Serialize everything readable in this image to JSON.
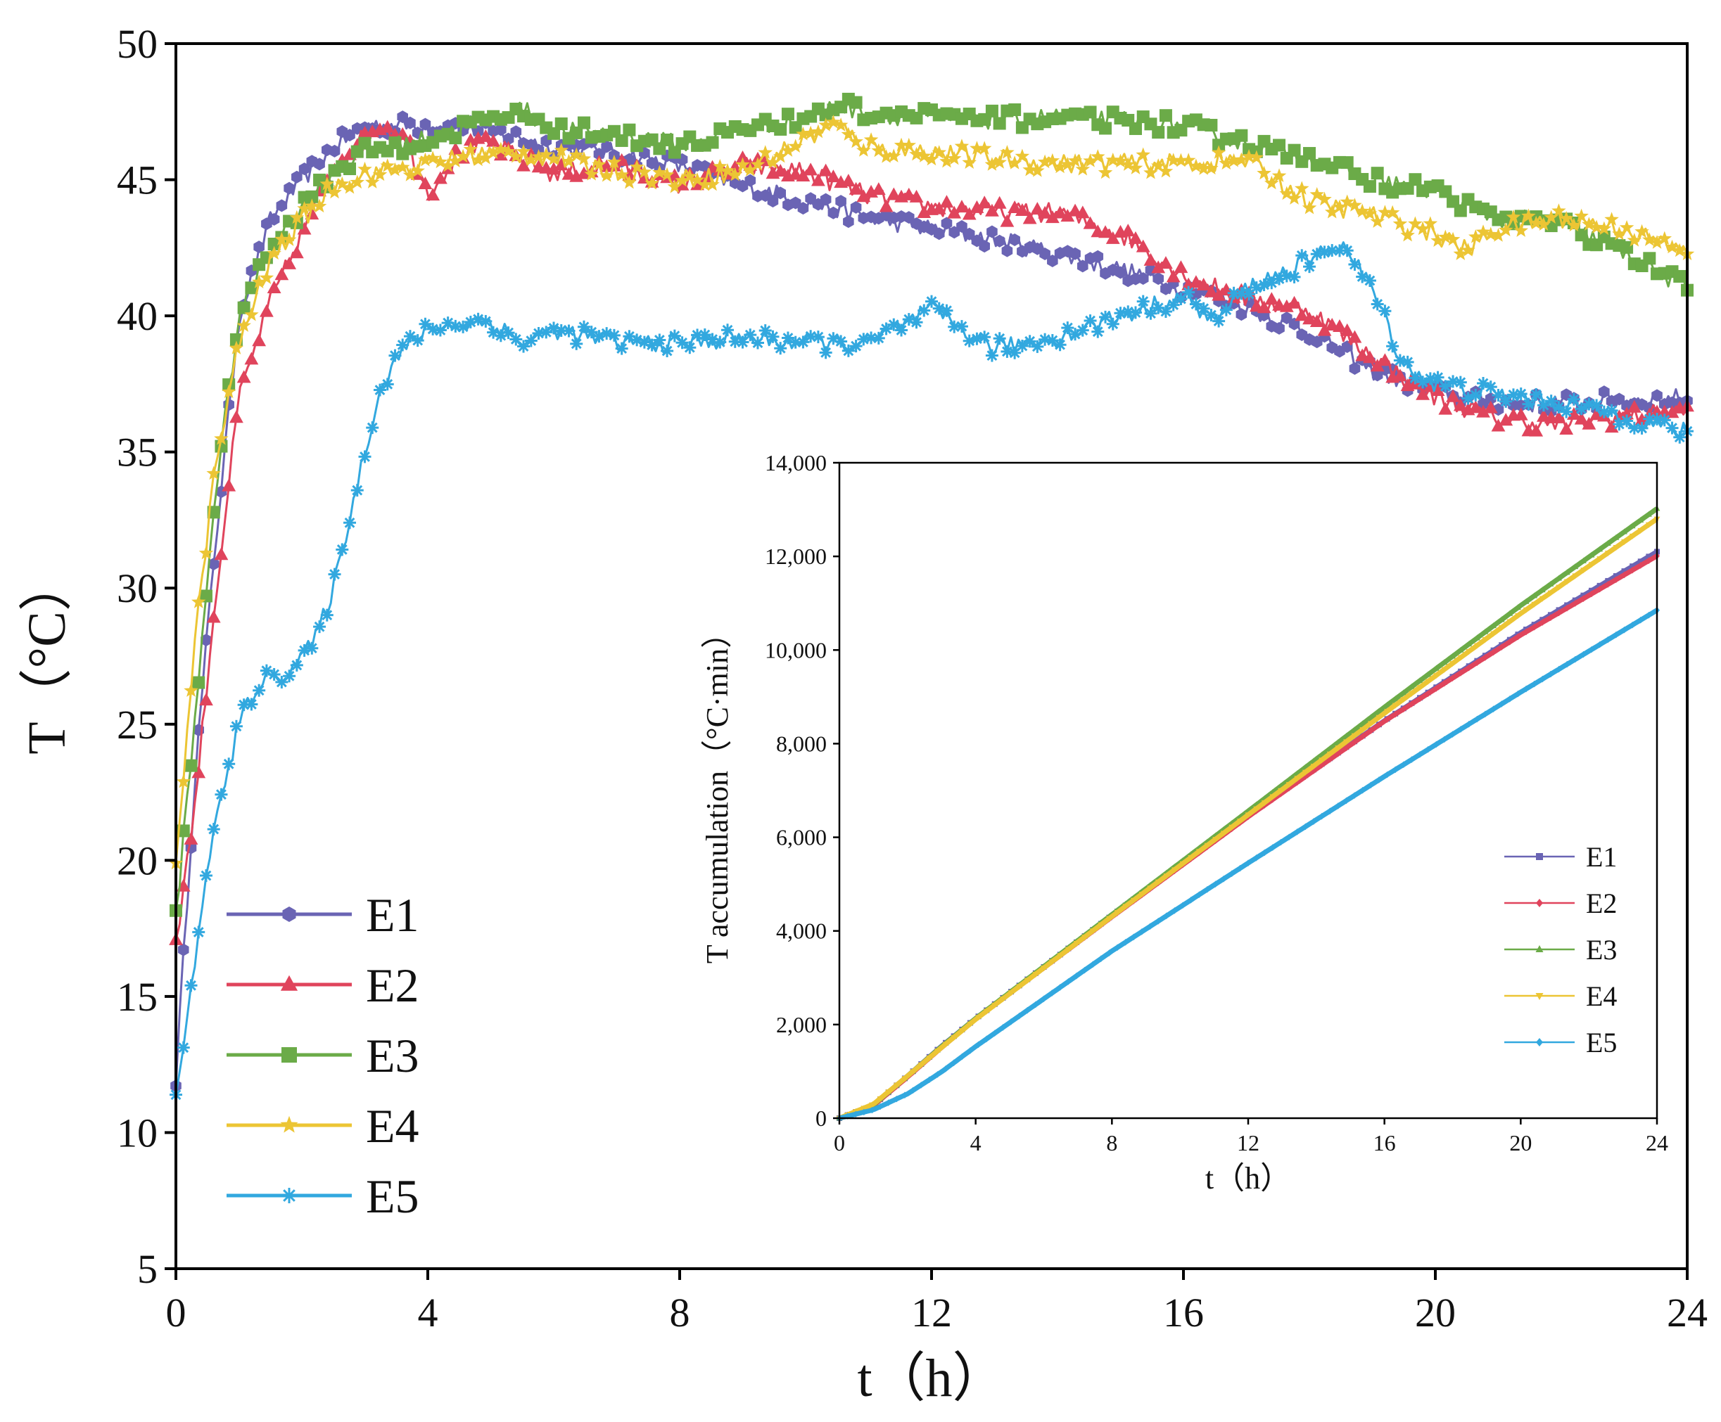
{
  "chart_data": [
    {
      "id": "main",
      "type": "line",
      "xlabel": "t（h）",
      "ylabel": "T（°C）",
      "xlim": [
        0,
        24
      ],
      "ylim": [
        5,
        50
      ],
      "xticks": [
        0,
        4,
        8,
        12,
        16,
        20,
        24
      ],
      "yticks": [
        5,
        10,
        15,
        20,
        25,
        30,
        35,
        40,
        45,
        50
      ],
      "grid": false,
      "legend_position": "lower-left",
      "series": [
        {
          "name": "E1",
          "color": "#6a64b4",
          "marker": "hexagon",
          "points": [
            [
              0,
              12
            ],
            [
              0.3,
              23
            ],
            [
              0.6,
              31
            ],
            [
              1.0,
              40
            ],
            [
              1.5,
              43.5
            ],
            [
              2.0,
              45
            ],
            [
              2.5,
              46.2
            ],
            [
              3.0,
              47
            ],
            [
              3.5,
              47
            ],
            [
              4.0,
              47
            ],
            [
              5.0,
              46.8
            ],
            [
              6.0,
              46.2
            ],
            [
              7.0,
              46
            ],
            [
              8.0,
              45.5
            ],
            [
              9.0,
              44.8
            ],
            [
              10.0,
              44.2
            ],
            [
              11.0,
              43.6
            ],
            [
              12.0,
              43.2
            ],
            [
              13.0,
              42.8
            ],
            [
              14.0,
              42.3
            ],
            [
              15.0,
              41.7
            ],
            [
              16.0,
              41
            ],
            [
              17.0,
              40.3
            ],
            [
              18.0,
              39.4
            ],
            [
              19.0,
              38
            ],
            [
              20.0,
              37.2
            ],
            [
              21.0,
              36.8
            ],
            [
              22.0,
              36.8
            ],
            [
              23.0,
              36.9
            ],
            [
              24.0,
              37
            ]
          ]
        },
        {
          "name": "E2",
          "color": "#e0445c",
          "marker": "triangle",
          "points": [
            [
              0,
              17
            ],
            [
              0.3,
              22
            ],
            [
              0.6,
              29
            ],
            [
              1.0,
              37
            ],
            [
              1.5,
              40.5
            ],
            [
              2.0,
              43
            ],
            [
              2.5,
              45.5
            ],
            [
              3.0,
              46.6
            ],
            [
              3.3,
              47
            ],
            [
              3.7,
              46.3
            ],
            [
              4.0,
              44.5
            ],
            [
              4.5,
              46
            ],
            [
              5.0,
              46.3
            ],
            [
              6.0,
              45.2
            ],
            [
              7.0,
              45.5
            ],
            [
              8.0,
              44.8
            ],
            [
              9.0,
              45.5
            ],
            [
              10.0,
              45.3
            ],
            [
              11.0,
              44.4
            ],
            [
              12.0,
              44
            ],
            [
              13.0,
              43.8
            ],
            [
              14.0,
              43.8
            ],
            [
              15.0,
              43
            ],
            [
              16.0,
              41.5
            ],
            [
              17.0,
              40.6
            ],
            [
              18.0,
              40.2
            ],
            [
              19.0,
              38.5
            ],
            [
              20.0,
              37
            ],
            [
              21.0,
              36.2
            ],
            [
              22.0,
              36
            ],
            [
              23.0,
              36.3
            ],
            [
              24.0,
              36.5
            ]
          ]
        },
        {
          "name": "E3",
          "color": "#6bab48",
          "marker": "square",
          "points": [
            [
              0,
              18
            ],
            [
              0.3,
              25
            ],
            [
              0.6,
              33
            ],
            [
              1.0,
              40
            ],
            [
              1.5,
              42.5
            ],
            [
              2.0,
              44
            ],
            [
              2.5,
              45.3
            ],
            [
              3.0,
              46
            ],
            [
              4.0,
              46.5
            ],
            [
              5.0,
              47.2
            ],
            [
              5.5,
              47.6
            ],
            [
              6.0,
              46.8
            ],
            [
              7.0,
              46.7
            ],
            [
              8.0,
              46.3
            ],
            [
              9.0,
              46.8
            ],
            [
              10.0,
              47.2
            ],
            [
              10.5,
              47.8
            ],
            [
              11.0,
              47.4
            ],
            [
              12.0,
              47.3
            ],
            [
              13.0,
              47.2
            ],
            [
              14.0,
              47.3
            ],
            [
              15.0,
              47.2
            ],
            [
              16.0,
              47
            ],
            [
              17.0,
              46.3
            ],
            [
              18.0,
              45.8
            ],
            [
              19.0,
              45
            ],
            [
              20.0,
              44.6
            ],
            [
              21.0,
              43.6
            ],
            [
              22.0,
              43.4
            ],
            [
              23.0,
              42.3
            ],
            [
              24.0,
              41
            ]
          ]
        },
        {
          "name": "E4",
          "color": "#ecc534",
          "marker": "star",
          "points": [
            [
              0,
              20
            ],
            [
              0.3,
              28
            ],
            [
              0.6,
              34
            ],
            [
              1.0,
              39
            ],
            [
              1.5,
              42
            ],
            [
              2.0,
              43.5
            ],
            [
              2.5,
              44.8
            ],
            [
              3.0,
              45.2
            ],
            [
              4.0,
              45.6
            ],
            [
              5.0,
              46
            ],
            [
              6.0,
              45.8
            ],
            [
              7.0,
              45.3
            ],
            [
              8.0,
              45
            ],
            [
              9.0,
              45.3
            ],
            [
              10.0,
              46.5
            ],
            [
              10.5,
              47
            ],
            [
              11.0,
              46.2
            ],
            [
              12.0,
              46
            ],
            [
              13.0,
              45.8
            ],
            [
              14.0,
              45.6
            ],
            [
              15.0,
              45.6
            ],
            [
              16.0,
              45.6
            ],
            [
              17.0,
              45.7
            ],
            [
              18.0,
              44.2
            ],
            [
              19.0,
              43.7
            ],
            [
              20.0,
              43
            ],
            [
              20.5,
              42.4
            ],
            [
              21.0,
              43.2
            ],
            [
              22.0,
              43.6
            ],
            [
              23.0,
              43.2
            ],
            [
              24.0,
              42.3
            ]
          ]
        },
        {
          "name": "E5",
          "color": "#32a8df",
          "marker": "asterisk",
          "points": [
            [
              0,
              11.5
            ],
            [
              0.3,
              16
            ],
            [
              0.5,
              20
            ],
            [
              0.8,
              23
            ],
            [
              1.0,
              25
            ],
            [
              1.3,
              26.5
            ],
            [
              1.8,
              27
            ],
            [
              2.2,
              28
            ],
            [
              2.5,
              30
            ],
            [
              2.8,
              33
            ],
            [
              3.0,
              35
            ],
            [
              3.2,
              37
            ],
            [
              3.5,
              38.5
            ],
            [
              4.0,
              39.5
            ],
            [
              5.0,
              39.8
            ],
            [
              5.5,
              39
            ],
            [
              6.0,
              39.5
            ],
            [
              7.0,
              39
            ],
            [
              8.0,
              39
            ],
            [
              9.0,
              39.2
            ],
            [
              10.0,
              39
            ],
            [
              11.0,
              39
            ],
            [
              12.0,
              40.2
            ],
            [
              13.0,
              38.8
            ],
            [
              14.0,
              39.2
            ],
            [
              15.0,
              40
            ],
            [
              16.0,
              40.7
            ],
            [
              16.5,
              39.8
            ],
            [
              17.0,
              41
            ],
            [
              18.0,
              42
            ],
            [
              18.5,
              42.7
            ],
            [
              19.0,
              41
            ],
            [
              19.5,
              38.2
            ],
            [
              20.0,
              37.5
            ],
            [
              21.0,
              37.1
            ],
            [
              22.0,
              36.8
            ],
            [
              23.0,
              36.3
            ],
            [
              24.0,
              35.7
            ]
          ]
        }
      ]
    },
    {
      "id": "inset",
      "type": "line",
      "xlabel": "t（h）",
      "ylabel": "T accumulation（°C·min）",
      "xlim": [
        0,
        24
      ],
      "ylim": [
        0,
        14000
      ],
      "xticks": [
        0,
        4,
        8,
        12,
        16,
        20,
        24
      ],
      "yticks": [
        0,
        2000,
        4000,
        6000,
        8000,
        10000,
        12000,
        14000
      ],
      "ytick_labels": [
        "0",
        "2,000",
        "4,000",
        "6,000",
        "8,000",
        "10,000",
        "12,000",
        "14,000"
      ],
      "grid": false,
      "legend_position": "right",
      "series": [
        {
          "name": "E1",
          "color": "#6a64b4",
          "marker": "square",
          "points": [
            [
              0,
              0
            ],
            [
              1,
              280
            ],
            [
              2,
              900
            ],
            [
              3,
              1540
            ],
            [
              4,
              2130
            ],
            [
              8,
              4330
            ],
            [
              12,
              6480
            ],
            [
              16,
              8490
            ],
            [
              20,
              10370
            ],
            [
              24,
              12100
            ]
          ]
        },
        {
          "name": "E2",
          "color": "#e0445c",
          "marker": "diamond",
          "points": [
            [
              0,
              0
            ],
            [
              1,
              270
            ],
            [
              2,
              880
            ],
            [
              3,
              1510
            ],
            [
              4,
              2120
            ],
            [
              8,
              4300
            ],
            [
              12,
              6440
            ],
            [
              16,
              8480
            ],
            [
              20,
              10320
            ],
            [
              24,
              12010
            ]
          ]
        },
        {
          "name": "E3",
          "color": "#6bab48",
          "marker": "triangle",
          "points": [
            [
              0,
              0
            ],
            [
              1,
              290
            ],
            [
              2,
              900
            ],
            [
              3,
              1530
            ],
            [
              4,
              2130
            ],
            [
              8,
              4350
            ],
            [
              12,
              6560
            ],
            [
              16,
              8780
            ],
            [
              20,
              10950
            ],
            [
              24,
              13020
            ]
          ]
        },
        {
          "name": "E4",
          "color": "#ecc534",
          "marker": "triangle-down",
          "points": [
            [
              0,
              0
            ],
            [
              1,
              300
            ],
            [
              2,
              900
            ],
            [
              3,
              1510
            ],
            [
              4,
              2110
            ],
            [
              8,
              4310
            ],
            [
              12,
              6480
            ],
            [
              16,
              8650
            ],
            [
              20,
              10780
            ],
            [
              24,
              12800
            ]
          ]
        },
        {
          "name": "E5",
          "color": "#32a8df",
          "marker": "diamond",
          "points": [
            [
              0,
              0
            ],
            [
              1,
              180
            ],
            [
              2,
              520
            ],
            [
              3,
              990
            ],
            [
              4,
              1530
            ],
            [
              8,
              3570
            ],
            [
              12,
              5450
            ],
            [
              16,
              7300
            ],
            [
              20,
              9100
            ],
            [
              24,
              10850
            ]
          ]
        }
      ]
    }
  ]
}
